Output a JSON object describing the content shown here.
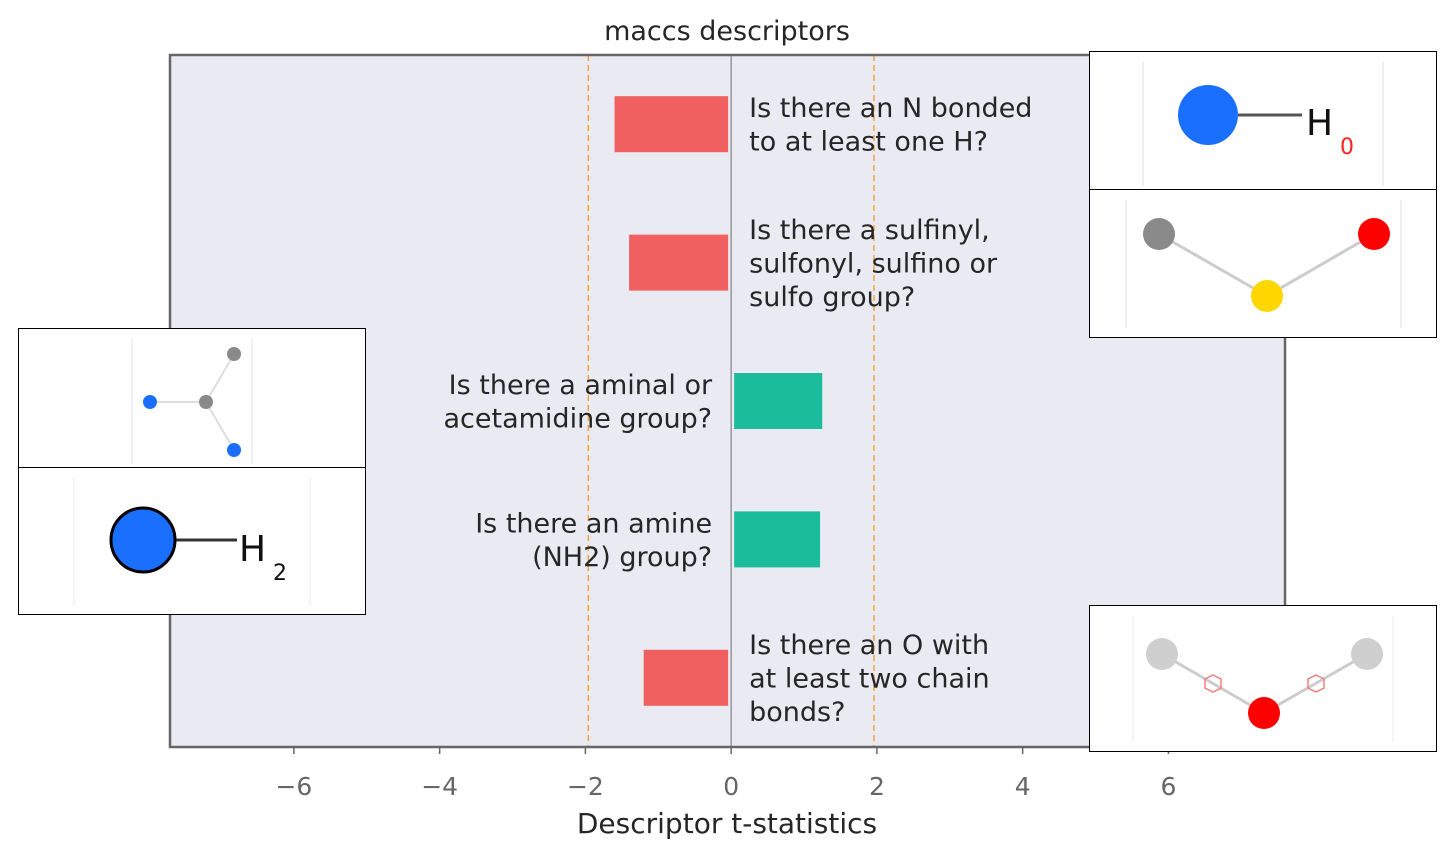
{
  "chart_data": {
    "type": "bar",
    "orientation": "horizontal",
    "title": "maccs descriptors",
    "xlabel": "Descriptor t-statistics",
    "ylabel": "",
    "xlim": [
      -7.7,
      7.6
    ],
    "xticks": [
      -6,
      -4,
      -2,
      0,
      2,
      4,
      6
    ],
    "xtick_labels": [
      "−6",
      "−4",
      "−2",
      "0",
      "2",
      "4",
      "6"
    ],
    "threshold_lines": [
      -1.96,
      1.96
    ],
    "grid": false,
    "categories": [
      [
        "Is there an N bonded",
        "to at least one H?"
      ],
      [
        "Is there a sulfinyl,",
        "sulfonyl, sulfino or",
        "sulfo group?"
      ],
      [
        "Is there a aminal or",
        "acetamidine group?"
      ],
      [
        "Is there an amine",
        "(NH2) group?"
      ],
      [
        "Is there an O with",
        "at least two chain",
        "bonds?"
      ]
    ],
    "values": [
      -1.6,
      -1.4,
      1.25,
      1.22,
      -1.2
    ],
    "colors": {
      "negative": "#f06060",
      "positive": "#1abc9c",
      "threshold": "#f5a142",
      "zero_line": "#8a8a8a",
      "axes_bg": "#eaeaf2",
      "axes_edge": "#666666"
    }
  },
  "molecule_images": [
    {
      "name": "nh-fragment",
      "label": "H",
      "subscript": "0"
    },
    {
      "name": "sulfonyl-fragment"
    },
    {
      "name": "aminal-fragment"
    },
    {
      "name": "nh2-fragment",
      "label": "H",
      "subscript": "2"
    },
    {
      "name": "ether-fragment"
    }
  ]
}
